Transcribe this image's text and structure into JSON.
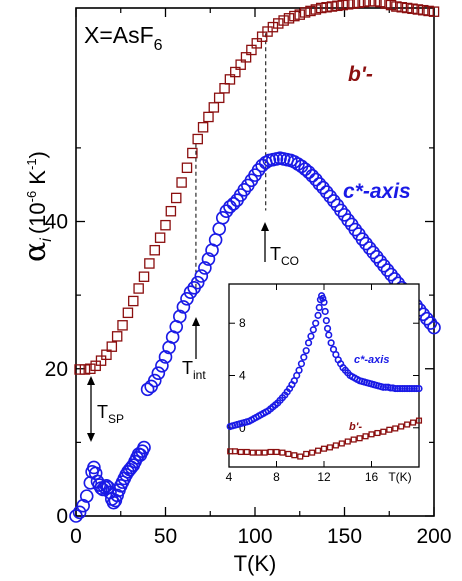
{
  "chart_data": {
    "type": "scatter",
    "title": "X=AsF",
    "title_sub": "6",
    "xlabel": "T(K)",
    "ylabel_main": "α",
    "ylabel_sub": "i",
    "ylabel_units": "(10",
    "ylabel_exp1": "-6",
    "ylabel_mid": " K",
    "ylabel_exp2": "-1",
    "ylabel_end": ")",
    "xlim": [
      0,
      200
    ],
    "ylim": [
      0,
      69
    ],
    "x_ticks": [
      "0",
      "50",
      "100",
      "150",
      "200"
    ],
    "x_tick_values": [
      0,
      50,
      100,
      150,
      200
    ],
    "y_ticks": [
      "0",
      "20",
      "40"
    ],
    "y_tick_values": [
      0,
      20,
      40
    ],
    "colors": {
      "b_prime": "#8b0f0f",
      "c_axis": "#1a1ae6"
    },
    "series": [
      {
        "name": "b'-",
        "marker": "square",
        "x": [
          2,
          5,
          8,
          11,
          14,
          17,
          20,
          23,
          26,
          29,
          32,
          35,
          38,
          41,
          44,
          47,
          50,
          53,
          56,
          59,
          62,
          65,
          68,
          71,
          74,
          77,
          80,
          83,
          86,
          89,
          92,
          95,
          98,
          101,
          104,
          107,
          110,
          113,
          116,
          119,
          122,
          125,
          128,
          131,
          134,
          137,
          140,
          143,
          146,
          149,
          152,
          155,
          158,
          161,
          164,
          167,
          170,
          173,
          176,
          179,
          182,
          185,
          188,
          191,
          194,
          197,
          200
        ],
        "y": [
          19.9,
          19.9,
          20.0,
          20.4,
          21.1,
          21.9,
          23.0,
          24.4,
          25.9,
          27.6,
          29.2,
          30.9,
          32.5,
          34.3,
          36.1,
          37.8,
          39.5,
          41.4,
          43.2,
          45.3,
          47.3,
          49.3,
          51.2,
          52.8,
          54.2,
          55.5,
          56.8,
          58.1,
          59.3,
          60.3,
          61.3,
          62.3,
          63.3,
          64.2,
          65.1,
          65.8,
          66.4,
          66.9,
          67.3,
          67.6,
          67.9,
          68.1,
          68.4,
          68.6,
          68.8,
          69.0,
          69.1,
          69.2,
          69.3,
          69.4,
          69.5,
          69.6,
          69.7,
          69.8,
          69.9,
          69.9,
          69.8,
          69.6,
          69.4,
          69.2,
          69.1,
          69.0,
          68.9,
          68.8,
          68.7,
          68.6,
          68.5
        ]
      },
      {
        "name": "c*-axis",
        "marker": "circle",
        "x": [
          0,
          2,
          4,
          6,
          8,
          9,
          10,
          11,
          12,
          13,
          14,
          15,
          16,
          17,
          18,
          19,
          20,
          21,
          22,
          23,
          24,
          25,
          26,
          27,
          28,
          29,
          30,
          31,
          32,
          33,
          34,
          35,
          36,
          37,
          38,
          40,
          42,
          44,
          46,
          48,
          50,
          52,
          54,
          56,
          58,
          60,
          62,
          64,
          66,
          68,
          70,
          72,
          74,
          76,
          78,
          80,
          82,
          84,
          86,
          88,
          90,
          92,
          94,
          96,
          98,
          100,
          102,
          104,
          106,
          108,
          110,
          112,
          114,
          116,
          118,
          120,
          122,
          124,
          126,
          128,
          130,
          132,
          134,
          136,
          138,
          140,
          142,
          144,
          146,
          148,
          150,
          152,
          154,
          156,
          158,
          160,
          162,
          164,
          166,
          168,
          170,
          172,
          174,
          176,
          178,
          180,
          182,
          184,
          186,
          188,
          190,
          192,
          194,
          196,
          198,
          200
        ],
        "y": [
          0.0,
          0.5,
          1.4,
          2.7,
          4.5,
          6.0,
          6.6,
          5.8,
          4.7,
          4.2,
          3.8,
          3.6,
          3.9,
          4.1,
          3.9,
          3.2,
          2.3,
          1.8,
          2.1,
          2.8,
          3.5,
          4.1,
          4.6,
          5.1,
          5.6,
          6.0,
          6.3,
          6.6,
          6.9,
          7.4,
          7.9,
          8.4,
          8.3,
          8.8,
          9.3,
          17.2,
          17.6,
          18.4,
          19.4,
          20.4,
          21.6,
          22.9,
          24.3,
          25.7,
          27.1,
          28.4,
          29.5,
          30.4,
          31.0,
          31.7,
          32.6,
          33.7,
          34.9,
          36.1,
          37.5,
          39.0,
          40.5,
          41.4,
          42.0,
          42.4,
          42.9,
          43.6,
          44.3,
          44.9,
          45.6,
          46.3,
          47.0,
          47.6,
          48.0,
          48.3,
          48.4,
          48.5,
          48.6,
          48.5,
          48.4,
          48.3,
          48.1,
          47.8,
          47.5,
          47.1,
          46.7,
          46.2,
          45.7,
          45.1,
          44.6,
          44.0,
          43.4,
          42.8,
          42.2,
          41.5,
          40.9,
          40.2,
          39.6,
          38.9,
          38.3,
          37.6,
          37.0,
          36.4,
          35.8,
          35.2,
          34.6,
          34.0,
          33.4,
          32.8,
          32.2,
          31.6,
          31.0,
          30.4,
          29.8,
          29.2,
          28.6,
          28.0,
          27.4,
          26.8,
          26.2,
          25.6
        ]
      }
    ],
    "labels": {
      "b_prime": "b'-",
      "c_axis": "c*-axis",
      "T_SP": "T",
      "T_SP_sub": "SP",
      "T_int": "T",
      "T_int_sub": "int",
      "T_CO": "T",
      "T_CO_sub": "CO"
    },
    "markers": {
      "T_SP": 11,
      "T_int": 67,
      "T_CO": 106
    },
    "inset": {
      "xlabel": "T(K)",
      "xlim": [
        4,
        20
      ],
      "ylim": [
        -3,
        11
      ],
      "x_ticks": [
        "4",
        "8",
        "12",
        "16"
      ],
      "x_tick_values": [
        4,
        8,
        12,
        16
      ],
      "y_ticks": [
        "0",
        "4",
        "8"
      ],
      "y_tick_values": [
        0,
        4,
        8
      ],
      "series": [
        {
          "name": "c*-axis",
          "marker": "circle",
          "x": [
            4.1,
            4.3,
            4.5,
            4.7,
            4.9,
            5.1,
            5.3,
            5.5,
            5.7,
            5.9,
            6.1,
            6.3,
            6.5,
            6.7,
            6.9,
            7.1,
            7.3,
            7.5,
            7.7,
            7.9,
            8.1,
            8.3,
            8.5,
            8.7,
            8.9,
            9.1,
            9.3,
            9.5,
            9.7,
            9.9,
            10.1,
            10.3,
            10.5,
            10.7,
            10.9,
            11.1,
            11.3,
            11.5,
            11.6,
            11.7,
            11.8,
            11.9,
            12.0,
            12.1,
            12.2,
            12.3,
            12.4,
            12.6,
            12.8,
            13.0,
            13.2,
            13.4,
            13.6,
            13.8,
            14.0,
            14.2,
            14.4,
            14.6,
            14.8,
            15.0,
            15.2,
            15.4,
            15.6,
            15.8,
            16.0,
            16.2,
            16.4,
            16.6,
            16.8,
            17.0,
            17.2,
            17.4,
            17.6,
            17.8,
            18.0,
            18.2,
            18.4,
            18.6,
            18.8,
            19.0,
            19.2,
            19.4,
            19.6,
            19.8,
            20.0
          ],
          "y": [
            0.1,
            0.15,
            0.2,
            0.25,
            0.3,
            0.35,
            0.4,
            0.45,
            0.5,
            0.6,
            0.7,
            0.8,
            0.9,
            1.0,
            1.1,
            1.2,
            1.3,
            1.45,
            1.6,
            1.75,
            1.9,
            2.1,
            2.3,
            2.5,
            2.75,
            3.0,
            3.3,
            3.6,
            4.0,
            4.4,
            4.9,
            5.4,
            5.9,
            6.5,
            7.0,
            7.5,
            8.0,
            8.6,
            9.2,
            9.8,
            10.1,
            9.9,
            9.6,
            8.9,
            8.2,
            7.6,
            7.1,
            6.5,
            6.0,
            5.6,
            5.2,
            4.9,
            4.6,
            4.4,
            4.2,
            4.0,
            3.9,
            3.8,
            3.7,
            3.6,
            3.55,
            3.5,
            3.45,
            3.4,
            3.35,
            3.3,
            3.25,
            3.2,
            3.15,
            3.1,
            3.1,
            3.1,
            3.05,
            3.05,
            3.0,
            3.0,
            3.0,
            3.0,
            3.0,
            3.0,
            3.0,
            3.0,
            3.0,
            3.0,
            3.0
          ]
        },
        {
          "name": "b'-",
          "marker": "square",
          "x": [
            4.1,
            4.5,
            5.0,
            5.5,
            6.0,
            6.5,
            7.0,
            7.5,
            8.0,
            8.5,
            9.0,
            9.5,
            10.0,
            10.5,
            11.0,
            11.5,
            12.0,
            12.5,
            13.0,
            13.5,
            14.0,
            14.5,
            15.0,
            15.5,
            16.0,
            16.5,
            17.0,
            17.5,
            18.0,
            18.5,
            19.0,
            19.5,
            20.0
          ],
          "y": [
            -1.8,
            -1.8,
            -1.85,
            -1.85,
            -1.9,
            -1.9,
            -1.9,
            -1.85,
            -1.85,
            -1.9,
            -2.0,
            -2.1,
            -2.2,
            -2.0,
            -1.9,
            -1.75,
            -1.6,
            -1.5,
            -1.35,
            -1.2,
            -1.05,
            -0.9,
            -0.8,
            -0.65,
            -0.5,
            -0.4,
            -0.3,
            -0.15,
            -0.05,
            0.1,
            0.25,
            0.4,
            0.55
          ]
        }
      ]
    }
  }
}
